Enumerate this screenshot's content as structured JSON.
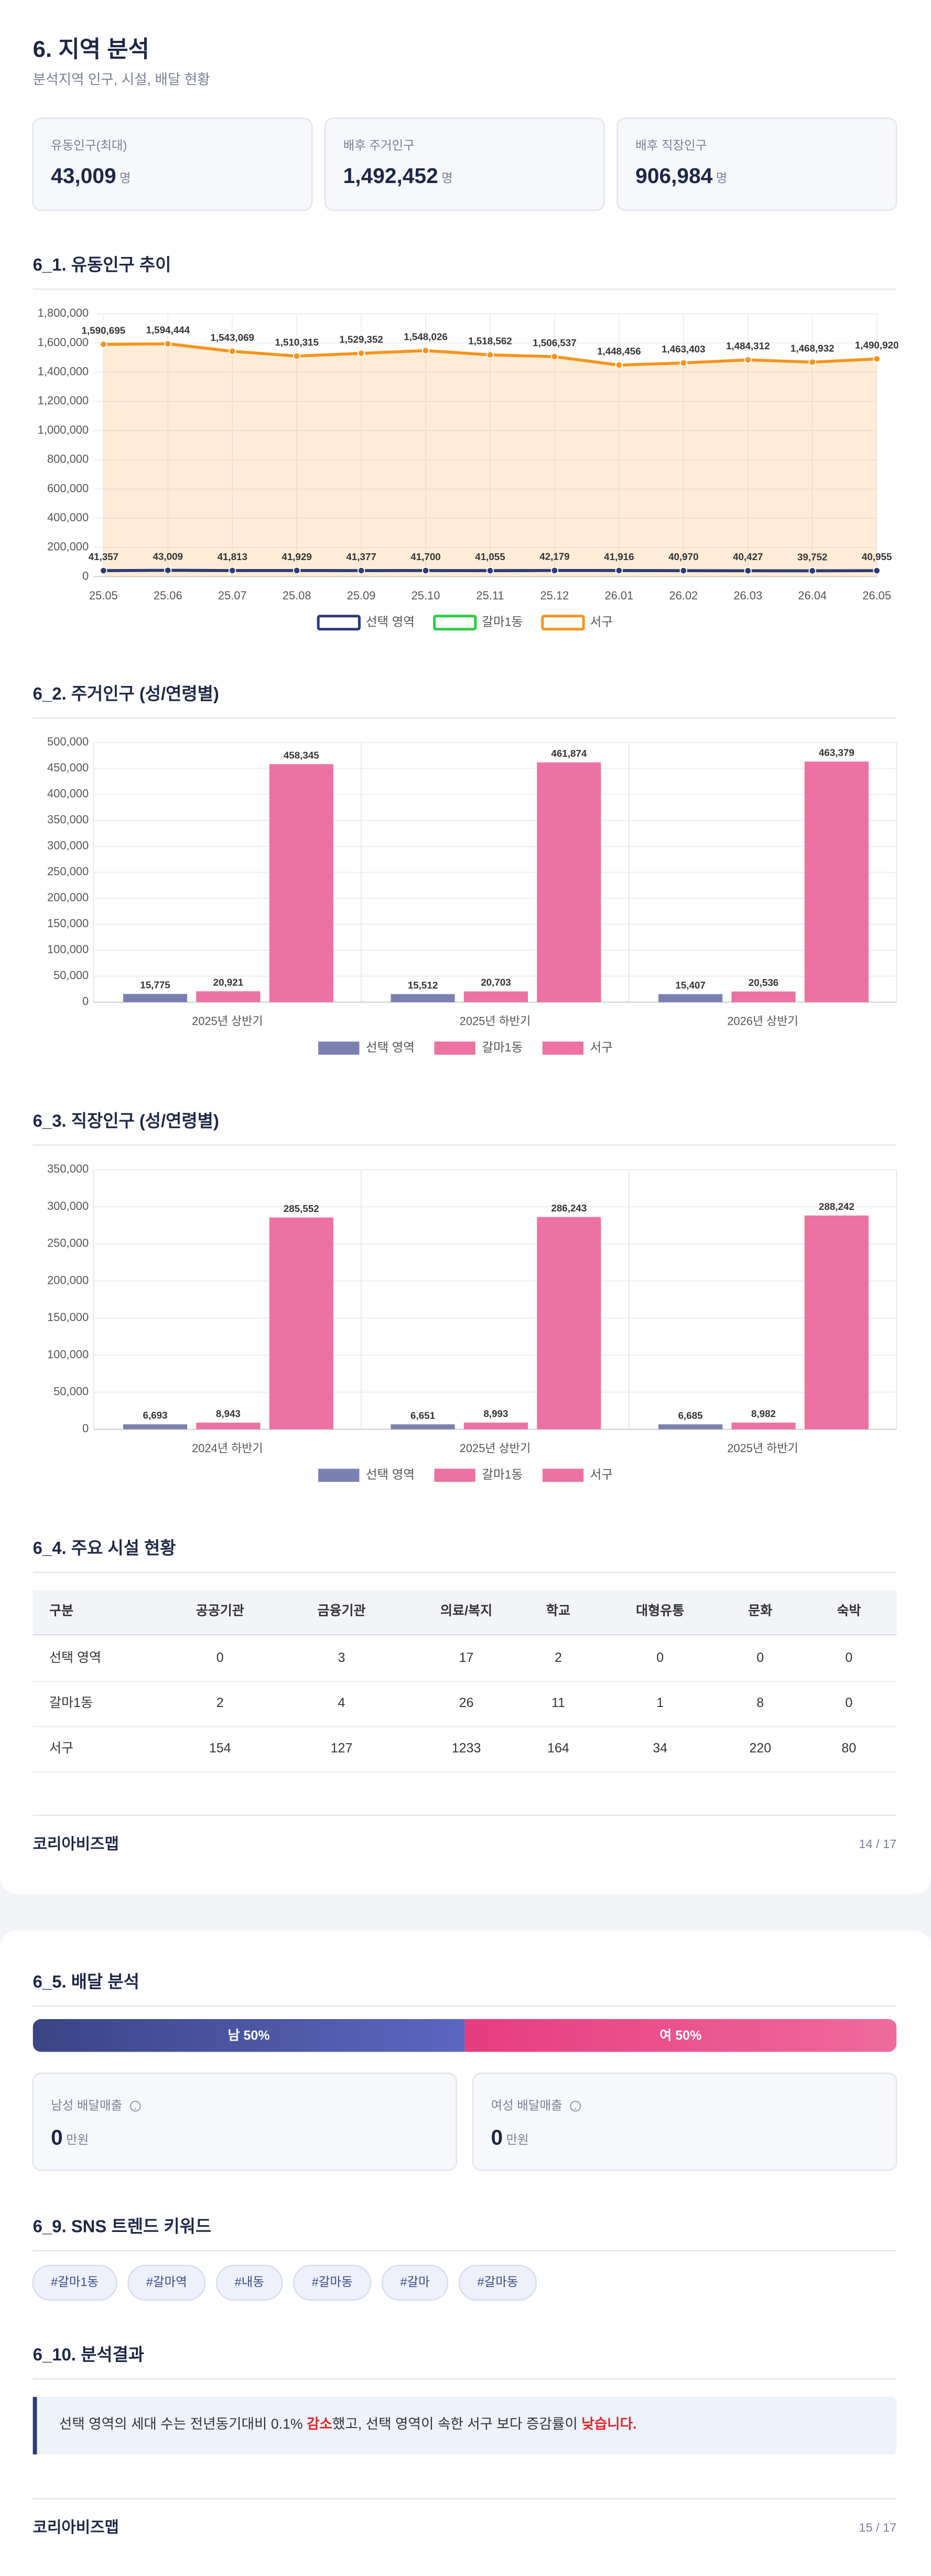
{
  "header": {
    "title": "6. 지역 분석",
    "subtitle": "분석지역 인구, 시설, 배달 현황"
  },
  "stats": [
    {
      "label": "유동인구(최대)",
      "value": "43,009",
      "unit": "명"
    },
    {
      "label": "배후 주거인구",
      "value": "1,492,452",
      "unit": "명"
    },
    {
      "label": "배후 직장인구",
      "value": "906,984",
      "unit": "명"
    }
  ],
  "chart_data": [
    {
      "type": "line",
      "title": "6_1. 유동인구 추이",
      "categories": [
        "25.05",
        "25.06",
        "25.07",
        "25.08",
        "25.09",
        "25.10",
        "25.11",
        "25.12",
        "26.01",
        "26.02",
        "26.03",
        "26.04",
        "26.05"
      ],
      "series": [
        {
          "name": "선택 영역",
          "color": "#2c3a78",
          "values": [
            41357,
            43009,
            41813,
            41929,
            41377,
            41700,
            41055,
            42179,
            41916,
            40970,
            40427,
            39752,
            40955
          ],
          "value_labels": [
            "41,357",
            "43,009",
            "41,813",
            "41,929",
            "41,377",
            "41,700",
            "41,055",
            "42,179",
            "41,916",
            "40,970",
            "40,427",
            "39,752",
            "40,955"
          ]
        },
        {
          "name": "갈마1동",
          "color": "#2ecc40",
          "values": [
            41357,
            43009,
            41813,
            41929,
            41377,
            41700,
            41055,
            42179,
            41916,
            40970,
            40427,
            39752,
            40955
          ]
        },
        {
          "name": "서구",
          "color": "#f7941d",
          "area": true,
          "values": [
            1590695,
            1594444,
            1543069,
            1510315,
            1529352,
            1548026,
            1518562,
            1506537,
            1448456,
            1463403,
            1484312,
            1468932,
            1490920
          ],
          "value_labels": [
            "1,590,695",
            "1,594,444",
            "1,543,069",
            "1,510,315",
            "1,529,352",
            "1,548,026",
            "1,518,562",
            "1,506,537",
            "1,448,456",
            "1,463,403",
            "1,484,312",
            "1,468,932",
            "1,490,920"
          ]
        }
      ],
      "ylim": [
        0,
        1800000
      ],
      "yticks": [
        0,
        {
          "value": 200000,
          "label": "200,000"
        },
        {
          "value": 400000,
          "label": "400,000"
        },
        {
          "value": 600000,
          "label": "600,000"
        },
        {
          "value": 800000,
          "label": "800,000"
        },
        {
          "value": 1000000,
          "label": "1,000,000"
        },
        {
          "value": 1200000,
          "label": "1,200,000"
        },
        {
          "value": 1400000,
          "label": "1,400,000"
        },
        {
          "value": 1600000,
          "label": "1,600,000"
        },
        {
          "value": 1800000,
          "label": "1,800,000"
        }
      ],
      "grid": true
    },
    {
      "type": "bar",
      "title": "6_2. 주거인구 (성/연령별)",
      "categories": [
        "2025년 상반기",
        "2025년 하반기",
        "2026년 상반기"
      ],
      "series": [
        {
          "name": "선택 영역",
          "color": "#7a81b0",
          "values": [
            15775,
            15512,
            15407
          ],
          "value_labels": [
            "15,775",
            "15,512",
            "15,407"
          ]
        },
        {
          "name": "갈마1동",
          "color": "#ec72a3",
          "values": [
            20921,
            20703,
            20536
          ],
          "value_labels": [
            "20,921",
            "20,703",
            "20,536"
          ]
        },
        {
          "name": "서구",
          "color": "#ec72a3",
          "values": [
            458345,
            461874,
            463379
          ],
          "value_labels": [
            "458,345",
            "461,874",
            "463,379"
          ]
        }
      ],
      "ylim": [
        0,
        500000
      ],
      "yticks": [
        0,
        {
          "value": 50000,
          "label": "50,000"
        },
        {
          "value": 100000,
          "label": "100,000"
        },
        {
          "value": 150000,
          "label": "150,000"
        },
        {
          "value": 200000,
          "label": "200,000"
        },
        {
          "value": 250000,
          "label": "250,000"
        },
        {
          "value": 300000,
          "label": "300,000"
        },
        {
          "value": 350000,
          "label": "350,000"
        },
        {
          "value": 400000,
          "label": "400,000"
        },
        {
          "value": 450000,
          "label": "450,000"
        },
        {
          "value": 500000,
          "label": "500,000"
        }
      ],
      "grid": true
    },
    {
      "type": "bar",
      "title": "6_3. 직장인구 (성/연령별)",
      "categories": [
        "2024년 하반기",
        "2025년 상반기",
        "2025년 하반기"
      ],
      "series": [
        {
          "name": "선택 영역",
          "color": "#7a81b0",
          "values": [
            6693,
            6651,
            6685
          ],
          "value_labels": [
            "6,693",
            "6,651",
            "6,685"
          ]
        },
        {
          "name": "갈마1동",
          "color": "#ec72a3",
          "values": [
            8943,
            8993,
            8982
          ],
          "value_labels": [
            "8,943",
            "8,993",
            "8,982"
          ]
        },
        {
          "name": "서구",
          "color": "#ec72a3",
          "values": [
            285552,
            286243,
            288242
          ],
          "value_labels": [
            "285,552",
            "286,243",
            "288,242"
          ]
        }
      ],
      "ylim": [
        0,
        350000
      ],
      "yticks": [
        0,
        {
          "value": 50000,
          "label": "50,000"
        },
        {
          "value": 100000,
          "label": "100,000"
        },
        {
          "value": 150000,
          "label": "150,000"
        },
        {
          "value": 200000,
          "label": "200,000"
        },
        {
          "value": 250000,
          "label": "250,000"
        },
        {
          "value": 300000,
          "label": "300,000"
        },
        {
          "value": 350000,
          "label": "350,000"
        }
      ],
      "grid": true
    }
  ],
  "facility": {
    "title": "6_4. 주요 시설 현황",
    "header": [
      "구분",
      "공공기관",
      "금융기관",
      "의료/복지",
      "학교",
      "대형유통",
      "문화",
      "숙박"
    ],
    "rows": [
      [
        "선택 영역",
        "0",
        "3",
        "17",
        "2",
        "0",
        "0",
        "0"
      ],
      [
        "갈마1동",
        "2",
        "4",
        "26",
        "11",
        "1",
        "8",
        "0"
      ],
      [
        "서구",
        "154",
        "127",
        "1233",
        "164",
        "34",
        "220",
        "80"
      ]
    ]
  },
  "footer1": {
    "brand": "코리아비즈맵",
    "page": "14 / 17"
  },
  "delivery": {
    "title": "6_5. 배달 분석",
    "gender": [
      {
        "label": "남 50%",
        "value": 50
      },
      {
        "label": "여 50%",
        "value": 50
      }
    ],
    "cards": [
      {
        "label": "남성 배달매출",
        "value": "0",
        "unit": "만원"
      },
      {
        "label": "여성 배달매출",
        "value": "0",
        "unit": "만원"
      }
    ]
  },
  "sns": {
    "title": "6_9. SNS 트렌드 키워드",
    "keywords": [
      "#갈마1동",
      "#갈마역",
      "#내동",
      "#갈마동",
      "#갈마",
      "#갈마동"
    ]
  },
  "result": {
    "title": "6_10. 분석결과",
    "segments": [
      {
        "text": "선택 영역의 세대 수는 전년동기대비 0.1% ",
        "highlight": false
      },
      {
        "text": "감소",
        "highlight": true
      },
      {
        "text": "했고, 선택 영역이 속한 서구 보다 증감률이 ",
        "highlight": false
      },
      {
        "text": "낮습니다.",
        "highlight": true
      }
    ]
  },
  "footer2": {
    "brand": "코리아비즈맵",
    "page": "15 / 17"
  }
}
